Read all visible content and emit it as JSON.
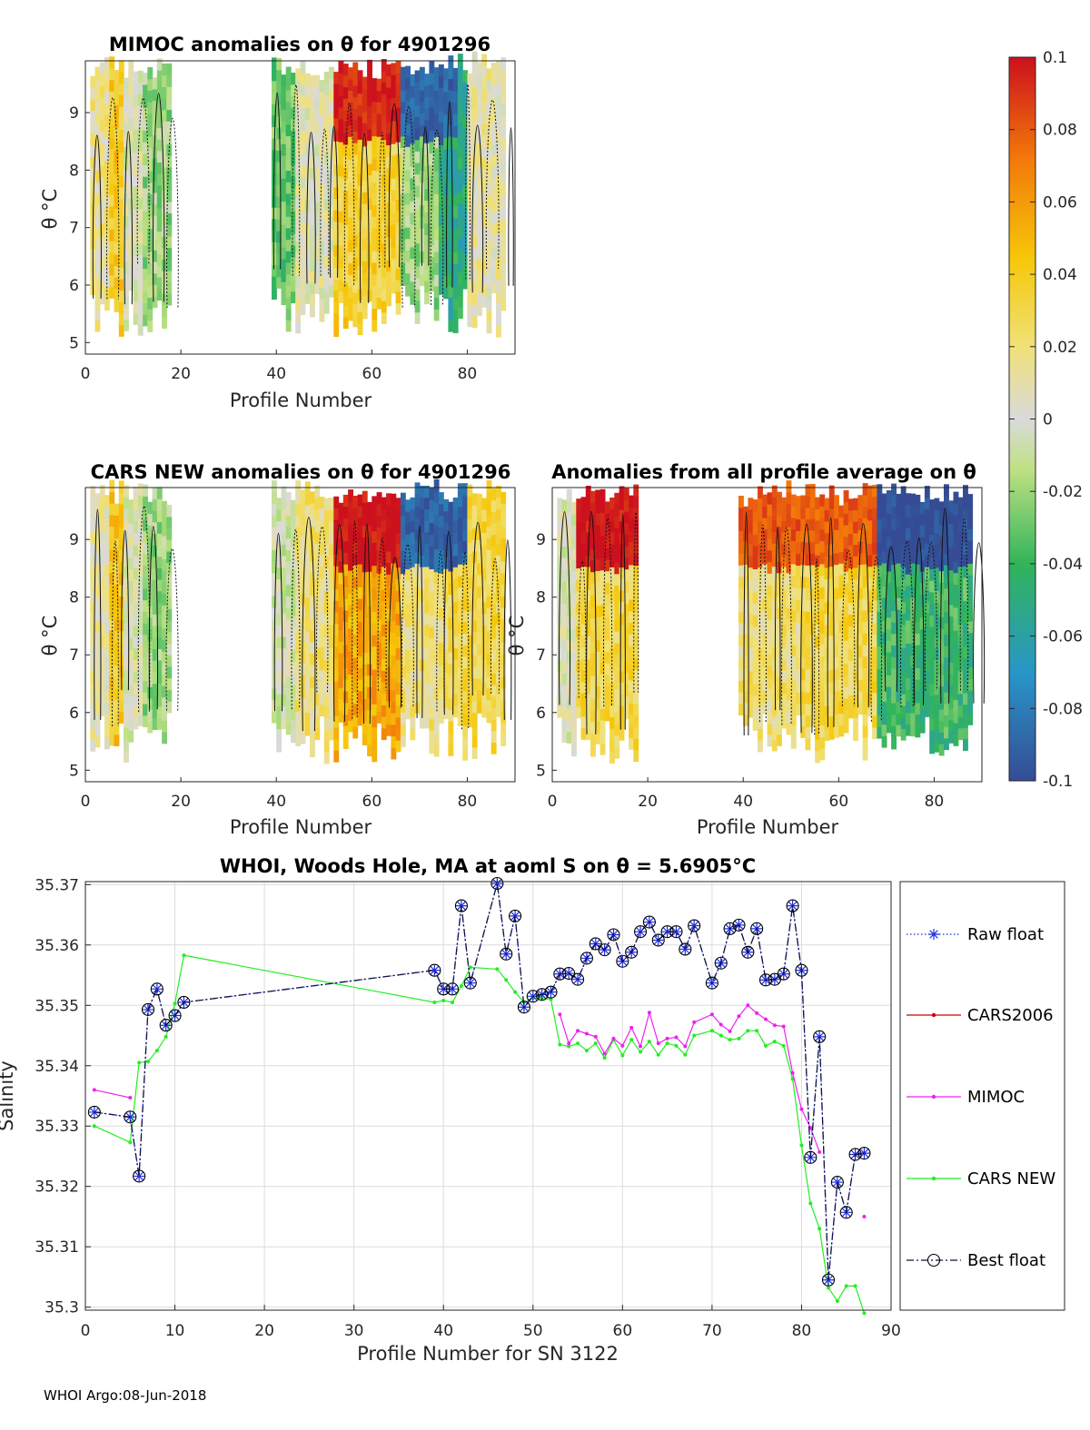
{
  "footer": "WHOI Argo:08-Jun-2018",
  "colors": {
    "raw": "#1f2fe0",
    "cars2006": "#d00000",
    "mimoc": "#ee22ee",
    "carsnew": "#22ee22",
    "best": "#101040"
  },
  "colorbar": {
    "ticks": [
      "0.1",
      "0.08",
      "0.06",
      "0.04",
      "0.02",
      "0",
      "-0.02",
      "-0.04",
      "-0.06",
      "-0.08",
      "-0.1"
    ],
    "range": [
      -0.1,
      0.1
    ]
  },
  "chart_data": [
    {
      "type": "heatmap",
      "id": "mimoc",
      "title": "MIMOC anomalies on θ  for 4901296",
      "xlabel": "Profile Number",
      "ylabel": "θ °C",
      "xlim": [
        0,
        90
      ],
      "ylim": [
        4.8,
        9.9
      ],
      "xticks": [
        0,
        20,
        40,
        60,
        80
      ],
      "yticks": [
        5,
        6,
        7,
        8,
        9
      ],
      "profile_ranges": [
        [
          1,
          18
        ],
        [
          39,
          88
        ]
      ],
      "segments": [
        {
          "x0": 1,
          "x1": 5,
          "value": 0.015
        },
        {
          "x0": 5,
          "x1": 8,
          "value": 0.04
        },
        {
          "x0": 8,
          "x1": 12,
          "value": 0.0
        },
        {
          "x0": 12,
          "x1": 18,
          "value": -0.02
        },
        {
          "x0": 39,
          "x1": 44,
          "value": -0.03
        },
        {
          "x0": 44,
          "x1": 52,
          "value": 0.005
        },
        {
          "x0": 52,
          "x1": 66,
          "value": 0.035
        },
        {
          "x0": 66,
          "x1": 74,
          "value": -0.02
        },
        {
          "x0": 74,
          "x1": 80,
          "value": -0.05
        },
        {
          "x0": 80,
          "x1": 88,
          "value": 0.01
        }
      ],
      "top_patches": [
        {
          "x0": 52,
          "x1": 66,
          "value": 0.095
        },
        {
          "x0": 66,
          "x1": 78,
          "value": -0.09
        }
      ]
    },
    {
      "type": "heatmap",
      "id": "carsnew",
      "title": "CARS NEW anomalies on θ for 4901296",
      "xlabel": "Profile Number",
      "ylabel": "θ °C",
      "xlim": [
        0,
        90
      ],
      "ylim": [
        4.8,
        9.9
      ],
      "xticks": [
        0,
        20,
        40,
        60,
        80
      ],
      "yticks": [
        5,
        6,
        7,
        8,
        9
      ],
      "profile_ranges": [
        [
          1,
          18
        ],
        [
          39,
          88
        ]
      ],
      "segments": [
        {
          "x0": 1,
          "x1": 5,
          "value": 0.01
        },
        {
          "x0": 5,
          "x1": 8,
          "value": 0.04
        },
        {
          "x0": 8,
          "x1": 12,
          "value": 0.0
        },
        {
          "x0": 12,
          "x1": 18,
          "value": -0.02
        },
        {
          "x0": 39,
          "x1": 44,
          "value": -0.005
        },
        {
          "x0": 44,
          "x1": 52,
          "value": 0.02
        },
        {
          "x0": 52,
          "x1": 66,
          "value": 0.055
        },
        {
          "x0": 66,
          "x1": 76,
          "value": 0.02
        },
        {
          "x0": 76,
          "x1": 88,
          "value": 0.03
        }
      ],
      "top_patches": [
        {
          "x0": 52,
          "x1": 66,
          "value": 0.1
        },
        {
          "x0": 66,
          "x1": 80,
          "value": -0.09
        }
      ]
    },
    {
      "type": "heatmap",
      "id": "allavg",
      "title": "Anomalies from all profile average on θ",
      "xlabel": "Profile Number",
      "ylabel": "θ °C",
      "xlim": [
        0,
        90
      ],
      "ylim": [
        4.8,
        9.9
      ],
      "xticks": [
        0,
        20,
        40,
        60,
        80
      ],
      "yticks": [
        5,
        6,
        7,
        8,
        9
      ],
      "profile_ranges": [
        [
          1,
          18
        ],
        [
          39,
          88
        ]
      ],
      "segments": [
        {
          "x0": 1,
          "x1": 5,
          "value": 0.0
        },
        {
          "x0": 5,
          "x1": 18,
          "value": 0.03
        },
        {
          "x0": 39,
          "x1": 52,
          "value": 0.02
        },
        {
          "x0": 52,
          "x1": 68,
          "value": 0.03
        },
        {
          "x0": 68,
          "x1": 88,
          "value": -0.04
        }
      ],
      "top_patches": [
        {
          "x0": 5,
          "x1": 18,
          "value": 0.1
        },
        {
          "x0": 39,
          "x1": 68,
          "value": 0.08
        },
        {
          "x0": 68,
          "x1": 88,
          "value": -0.1
        }
      ]
    },
    {
      "type": "line",
      "id": "salinity",
      "title": "WHOI, Woods Hole, MA at aoml S on θ = 5.6905°C",
      "xlabel": "Profile Number for SN 3122",
      "ylabel": "Salinity",
      "xlim": [
        0,
        90
      ],
      "ylim": [
        35.2995,
        35.3705
      ],
      "xticks": [
        0,
        10,
        20,
        30,
        40,
        50,
        60,
        70,
        80,
        90
      ],
      "yticks": [
        35.3,
        35.31,
        35.32,
        35.33,
        35.34,
        35.35,
        35.36,
        35.37
      ],
      "legend": [
        "Raw float",
        "CARS2006",
        "MIMOC",
        "CARS NEW",
        "Best float"
      ],
      "series": [
        {
          "name": "Raw float",
          "style": "dotted-star",
          "x": [
            1,
            5,
            6,
            7,
            8,
            9,
            10,
            11,
            39,
            40,
            41,
            42,
            43,
            46,
            47,
            48,
            49,
            50,
            51,
            52,
            53,
            54,
            55,
            56,
            57,
            58,
            59,
            60,
            61,
            62,
            63,
            64,
            65,
            66,
            67,
            68,
            70,
            71,
            72,
            73,
            74,
            75,
            76,
            77,
            78,
            79,
            80,
            81,
            82,
            83,
            84,
            85,
            86,
            87
          ],
          "y": [
            35.3323,
            35.3315,
            35.3217,
            35.3493,
            35.3527,
            35.3467,
            35.3483,
            35.3505,
            35.3558,
            35.3527,
            35.3527,
            35.3665,
            35.3537,
            35.3702,
            35.3585,
            35.3648,
            35.3497,
            35.3515,
            35.3518,
            35.3522,
            35.3552,
            35.3553,
            35.3543,
            35.3578,
            35.3602,
            35.3592,
            35.3617,
            35.3573,
            35.3588,
            35.3622,
            35.3638,
            35.3608,
            35.3622,
            35.3622,
            35.3593,
            35.3632,
            35.3537,
            35.357,
            35.3627,
            35.3633,
            35.3588,
            35.3627,
            35.3542,
            35.3543,
            35.3552,
            35.3665,
            35.3558,
            35.3248,
            35.3448,
            35.3045,
            35.3207,
            35.3157,
            35.3253,
            35.3255
          ]
        },
        {
          "name": "CARS2006",
          "style": "dot",
          "x": [],
          "y": []
        },
        {
          "name": "MIMOC",
          "style": "dot",
          "x": [
            1,
            5,
            null,
            53,
            54,
            55,
            56,
            57,
            58,
            59,
            60,
            61,
            62,
            63,
            64,
            65,
            66,
            67,
            68,
            70,
            71,
            72,
            73,
            74,
            75,
            76,
            77,
            78,
            79,
            80,
            81,
            82,
            null,
            87
          ],
          "y": [
            35.336,
            35.3347,
            null,
            35.3485,
            35.3437,
            35.3458,
            35.3453,
            35.3448,
            35.342,
            35.3445,
            35.3433,
            35.3463,
            35.3432,
            35.3488,
            35.3437,
            35.3445,
            35.3447,
            35.3432,
            35.3472,
            35.3485,
            35.3468,
            35.3457,
            35.3482,
            35.35,
            35.3487,
            35.3477,
            35.3467,
            35.3465,
            35.3388,
            35.3328,
            35.3297,
            35.3257,
            null,
            35.315
          ]
        },
        {
          "name": "CARS NEW",
          "style": "dot",
          "x": [
            1,
            5,
            6,
            7,
            8,
            9,
            10,
            11,
            39,
            40,
            41,
            42,
            43,
            46,
            47,
            48,
            49,
            50,
            51,
            52,
            53,
            54,
            55,
            56,
            57,
            58,
            59,
            60,
            61,
            62,
            63,
            64,
            65,
            66,
            67,
            68,
            70,
            71,
            72,
            73,
            74,
            75,
            76,
            77,
            78,
            79,
            80,
            81,
            82,
            83,
            84,
            85,
            86,
            87
          ],
          "y": [
            35.33,
            35.3273,
            35.3405,
            35.3407,
            35.3425,
            35.3448,
            35.3503,
            35.3583,
            35.3505,
            35.3508,
            35.3505,
            35.3532,
            35.3563,
            35.356,
            35.3542,
            35.3522,
            35.3505,
            35.3512,
            35.3512,
            35.351,
            35.3435,
            35.3432,
            35.3437,
            35.3425,
            35.3437,
            35.3413,
            35.3443,
            35.3417,
            35.3443,
            35.3423,
            35.344,
            35.3418,
            35.3437,
            35.3433,
            35.3418,
            35.345,
            35.3458,
            35.345,
            35.3443,
            35.3445,
            35.3458,
            35.3458,
            35.3433,
            35.344,
            35.3433,
            35.3378,
            35.3268,
            35.3172,
            35.313,
            35.3032,
            35.301,
            35.3035,
            35.3035,
            35.299
          ]
        },
        {
          "name": "Best float",
          "style": "dashdot-circle",
          "x": [
            1,
            5,
            6,
            7,
            8,
            9,
            10,
            11,
            39,
            40,
            41,
            42,
            43,
            46,
            47,
            48,
            49,
            50,
            51,
            52,
            53,
            54,
            55,
            56,
            57,
            58,
            59,
            60,
            61,
            62,
            63,
            64,
            65,
            66,
            67,
            68,
            70,
            71,
            72,
            73,
            74,
            75,
            76,
            77,
            78,
            79,
            80,
            81,
            82,
            83,
            84,
            85,
            86,
            87
          ],
          "y": [
            35.3323,
            35.3315,
            35.3217,
            35.3493,
            35.3527,
            35.3467,
            35.3483,
            35.3505,
            35.3558,
            35.3527,
            35.3527,
            35.3665,
            35.3537,
            35.3702,
            35.3585,
            35.3648,
            35.3497,
            35.3515,
            35.3518,
            35.3522,
            35.3552,
            35.3553,
            35.3543,
            35.3578,
            35.3602,
            35.3592,
            35.3617,
            35.3573,
            35.3588,
            35.3622,
            35.3638,
            35.3608,
            35.3622,
            35.3622,
            35.3593,
            35.3632,
            35.3537,
            35.357,
            35.3627,
            35.3633,
            35.3588,
            35.3627,
            35.3542,
            35.3543,
            35.3552,
            35.3665,
            35.3558,
            35.3248,
            35.3448,
            35.3045,
            35.3207,
            35.3157,
            35.3253,
            35.3255
          ]
        }
      ]
    }
  ]
}
